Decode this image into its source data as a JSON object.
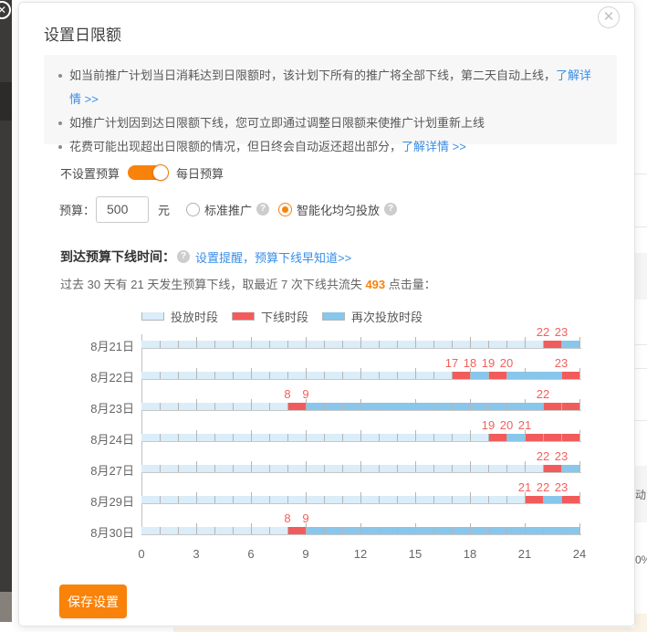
{
  "accent_color": "#f8820a",
  "link_color": "#3a8ee6",
  "dialog": {
    "title": "设置日限额",
    "close_glyph": "✕",
    "notices": [
      {
        "text": "如当前推广计划当日消耗达到日限额时，该计划下所有的推广将全部下线，第二天自动上线，",
        "link": "了解详情 >>"
      },
      {
        "text": "如推广计划因到达日限额下线，您可立即通过调整日限额来使推广计划重新上线",
        "link": ""
      },
      {
        "text": "花费可能出现超出日限额的情况，但日终会自动返还超出部分，",
        "link": "了解详情 >>"
      }
    ],
    "toggle": {
      "off_label": "不设置预算",
      "on_label": "每日预算",
      "state": "on"
    },
    "budget": {
      "label": "预算：",
      "value": "500",
      "unit": "元"
    },
    "radios": [
      {
        "label": "标准推广",
        "selected": false
      },
      {
        "label": "智能化均匀投放",
        "selected": true
      }
    ],
    "offline_time": {
      "label": "到达预算下线时间：",
      "help_glyph": "?",
      "link": "设置提醒，预算下线早知道>>"
    },
    "stats": {
      "prefix": "过去 30 天有 21 天发生预算下线，取最近 7 次下线共流失 ",
      "highlight": "493",
      "suffix": " 点击量："
    },
    "save_button": "保存设置"
  },
  "chart_data": {
    "type": "timeline",
    "xlabel_hours": [
      0,
      3,
      6,
      9,
      12,
      15,
      18,
      21,
      24
    ],
    "x_range": [
      0,
      24
    ],
    "legend": [
      {
        "label": "投放时段",
        "color": "#daedf9",
        "key": "serve"
      },
      {
        "label": "下线时段",
        "color": "#f25b5b",
        "key": "off"
      },
      {
        "label": "再次投放时段",
        "color": "#88c7eb",
        "key": "reserve"
      }
    ],
    "rows": [
      {
        "date": "8月21日",
        "labels": [
          22,
          23
        ],
        "segments": [
          {
            "s": 0,
            "e": 22,
            "t": "serve"
          },
          {
            "s": 22,
            "e": 23,
            "t": "off"
          },
          {
            "s": 23,
            "e": 24,
            "t": "reserve"
          }
        ]
      },
      {
        "date": "8月22日",
        "labels": [
          17,
          18,
          19,
          20,
          23
        ],
        "segments": [
          {
            "s": 0,
            "e": 17,
            "t": "serve"
          },
          {
            "s": 17,
            "e": 18,
            "t": "off"
          },
          {
            "s": 18,
            "e": 19,
            "t": "reserve"
          },
          {
            "s": 19,
            "e": 20,
            "t": "off"
          },
          {
            "s": 20,
            "e": 23,
            "t": "reserve"
          },
          {
            "s": 23,
            "e": 24,
            "t": "off"
          }
        ]
      },
      {
        "date": "8月23日",
        "labels": [
          8,
          9,
          22
        ],
        "segments": [
          {
            "s": 0,
            "e": 8,
            "t": "serve"
          },
          {
            "s": 8,
            "e": 9,
            "t": "off"
          },
          {
            "s": 9,
            "e": 22,
            "t": "reserve"
          },
          {
            "s": 22,
            "e": 24,
            "t": "off"
          }
        ]
      },
      {
        "date": "8月24日",
        "labels": [
          19,
          20,
          21
        ],
        "segments": [
          {
            "s": 0,
            "e": 19,
            "t": "serve"
          },
          {
            "s": 19,
            "e": 20,
            "t": "off"
          },
          {
            "s": 20,
            "e": 21,
            "t": "reserve"
          },
          {
            "s": 21,
            "e": 24,
            "t": "off"
          }
        ]
      },
      {
        "date": "8月27日",
        "labels": [
          22,
          23
        ],
        "segments": [
          {
            "s": 0,
            "e": 22,
            "t": "serve"
          },
          {
            "s": 22,
            "e": 23,
            "t": "off"
          },
          {
            "s": 23,
            "e": 24,
            "t": "reserve"
          }
        ]
      },
      {
        "date": "8月29日",
        "labels": [
          21,
          22,
          23
        ],
        "segments": [
          {
            "s": 0,
            "e": 21,
            "t": "serve"
          },
          {
            "s": 21,
            "e": 22,
            "t": "off"
          },
          {
            "s": 22,
            "e": 23,
            "t": "reserve"
          },
          {
            "s": 23,
            "e": 24,
            "t": "off"
          }
        ]
      },
      {
        "date": "8月30日",
        "labels": [
          8,
          9
        ],
        "segments": [
          {
            "s": 0,
            "e": 8,
            "t": "serve"
          },
          {
            "s": 8,
            "e": 9,
            "t": "off"
          },
          {
            "s": 9,
            "e": 24,
            "t": "reserve"
          }
        ]
      }
    ]
  },
  "background_page": {
    "fragment_text_1": "动出",
    "fragment_text_2": "0%",
    "rail_close_glyph": "✕"
  }
}
